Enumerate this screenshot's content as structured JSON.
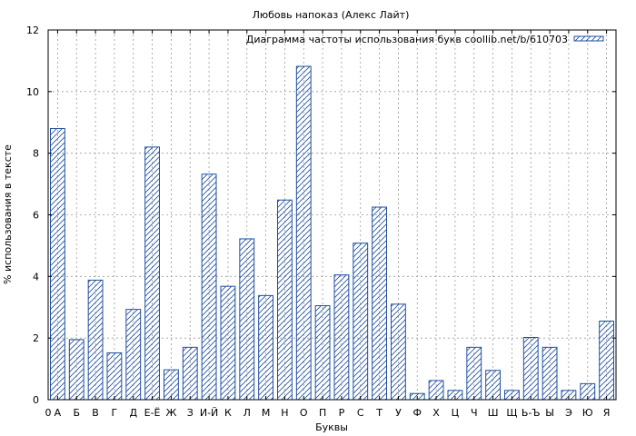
{
  "chart_data": {
    "type": "bar",
    "title": "Любовь напоказ (Алекс Лайт)",
    "xlabel": "Буквы",
    "ylabel": "% использования в тексте",
    "ylim": [
      0,
      12
    ],
    "yticks": [
      0,
      2,
      4,
      6,
      8,
      10,
      12
    ],
    "grid": true,
    "legend_position": "top-right",
    "x_start_label": "0",
    "categories": [
      "А",
      "Б",
      "В",
      "Г",
      "Д",
      "Е-Ё",
      "Ж",
      "З",
      "И-Й",
      "К",
      "Л",
      "М",
      "Н",
      "О",
      "П",
      "Р",
      "С",
      "Т",
      "У",
      "Ф",
      "Х",
      "Ц",
      "Ч",
      "Ш",
      "Щ",
      "Ь-Ъ",
      "Ы",
      "Э",
      "Ю",
      "Я"
    ],
    "series": [
      {
        "name": "Диаграмма частоты использования букв coollib.net/b/610703",
        "color": "#1f4fa0",
        "values": [
          8.8,
          1.95,
          3.88,
          1.52,
          2.93,
          8.2,
          0.97,
          1.7,
          7.32,
          3.68,
          5.22,
          3.38,
          6.48,
          10.82,
          3.05,
          4.05,
          5.08,
          6.25,
          3.1,
          0.2,
          0.62,
          0.3,
          1.7,
          0.95,
          0.3,
          2.02,
          1.7,
          0.3,
          0.52,
          2.55
        ]
      }
    ]
  }
}
